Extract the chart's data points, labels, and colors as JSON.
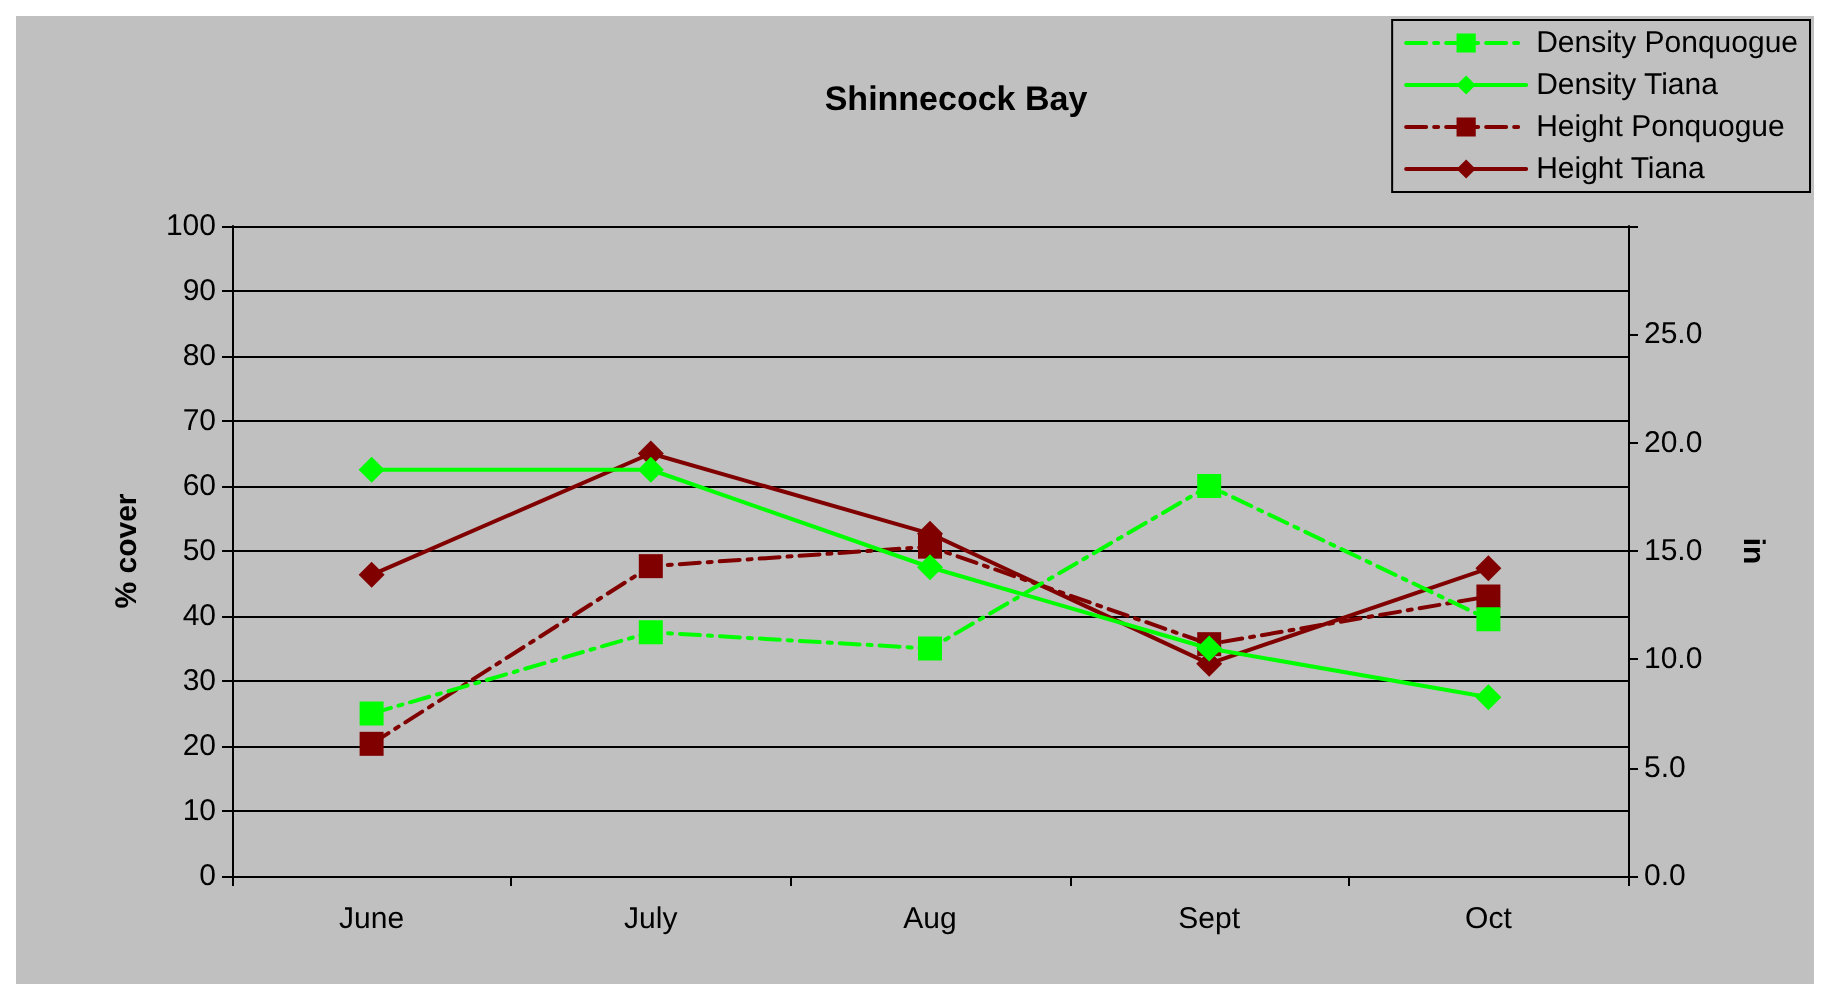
{
  "chart_data": {
    "type": "line",
    "title": "Shinnecock Bay",
    "ylabel": "% cover",
    "y2label": "in",
    "categories": [
      "June",
      "July",
      "Aug",
      "Sept",
      "Oct"
    ],
    "series": [
      {
        "name": "Density Ponquogue",
        "color": "#00ff00",
        "marker": "square",
        "line_style": "dashed",
        "values": [
          25,
          37.5,
          35,
          60,
          39.5
        ]
      },
      {
        "name": "Density Tiana",
        "color": "#00ff00",
        "marker": "diamond",
        "line_style": "solid",
        "values": [
          62.5,
          62.5,
          47.5,
          35,
          27.5
        ]
      },
      {
        "name": "Height Ponquogue",
        "color": "#800000",
        "marker": "square",
        "line_style": "dashed",
        "axis": "y2",
        "values": [
          6.1,
          14.3,
          15.2,
          10.7,
          12.9
        ]
      },
      {
        "name": "Height Tiana",
        "color": "#800000",
        "marker": "diamond",
        "line_style": "solid",
        "axis": "y2",
        "values": [
          13.9,
          19.5,
          15.8,
          9.8,
          14.2
        ]
      }
    ],
    "ylim": [
      0,
      100
    ],
    "yticks": [
      0,
      10,
      20,
      30,
      40,
      50,
      60,
      70,
      80,
      90,
      100
    ],
    "y2lim": [
      0,
      30
    ],
    "y2ticks": [
      {
        "value": 0,
        "label": "0.0"
      },
      {
        "value": 5,
        "label": "5.0"
      },
      {
        "value": 10,
        "label": "10.0"
      },
      {
        "value": 15,
        "label": "15.0"
      },
      {
        "value": 20,
        "label": "20.0"
      },
      {
        "value": 25,
        "label": "25.0"
      },
      {
        "value": 30,
        "label": null
      }
    ],
    "grid": "y",
    "legend": "top right"
  }
}
